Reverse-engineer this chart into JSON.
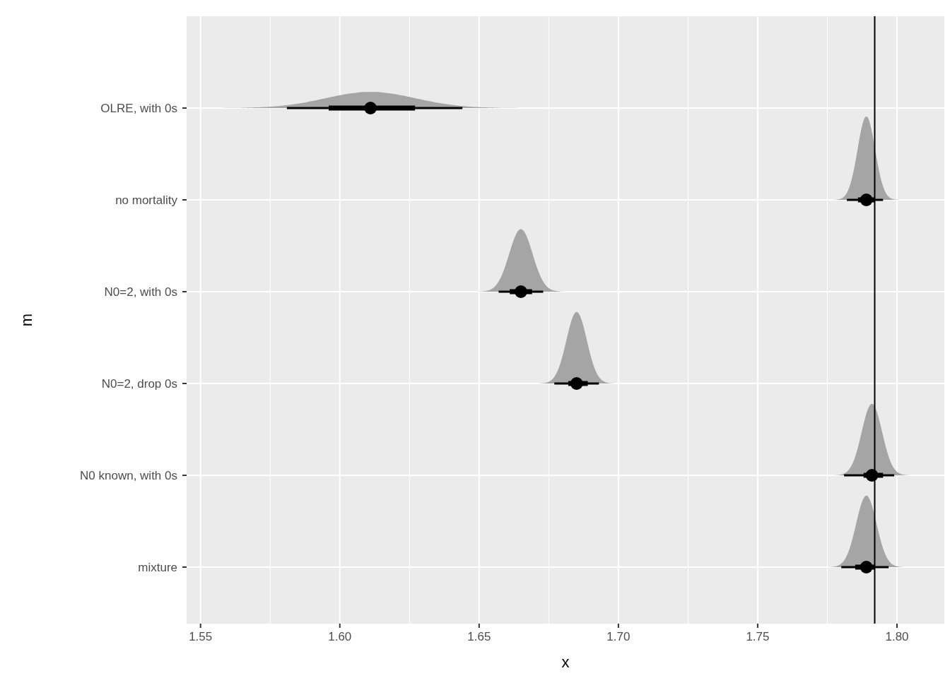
{
  "chart_data": {
    "type": "box",
    "orientation": "horizontal",
    "xlabel": "x",
    "ylabel": "m",
    "categories": [
      "OLRE, with 0s",
      "no mortality",
      "N0=2, with 0s",
      "N0=2, drop 0s",
      "N0 known, with 0s",
      "mixture"
    ],
    "boxes": [
      {
        "low": 1.581,
        "q1": 1.596,
        "median": 1.611,
        "q3": 1.627,
        "high": 1.644
      },
      {
        "low": 1.782,
        "q1": 1.786,
        "median": 1.789,
        "q3": 1.792,
        "high": 1.795
      },
      {
        "low": 1.657,
        "q1": 1.661,
        "median": 1.665,
        "q3": 1.669,
        "high": 1.673
      },
      {
        "low": 1.677,
        "q1": 1.682,
        "median": 1.685,
        "q3": 1.689,
        "high": 1.693
      },
      {
        "low": 1.781,
        "q1": 1.788,
        "median": 1.791,
        "q3": 1.795,
        "high": 1.799
      },
      {
        "low": 1.78,
        "q1": 1.785,
        "median": 1.789,
        "q3": 1.792,
        "high": 1.797
      }
    ],
    "color": "#000000",
    "xlim": [
      1.545,
      1.817
    ],
    "xticks": [
      1.55,
      {
        "value": 1.6,
        "label": "1.60"
      },
      1.65,
      {
        "value": 1.7,
        "label": "1.70"
      },
      1.75,
      {
        "value": 1.8,
        "label": "1.80"
      }
    ],
    "ref_lines": [
      {
        "axis": "x",
        "value": 1.792
      }
    ],
    "grid": true
  }
}
